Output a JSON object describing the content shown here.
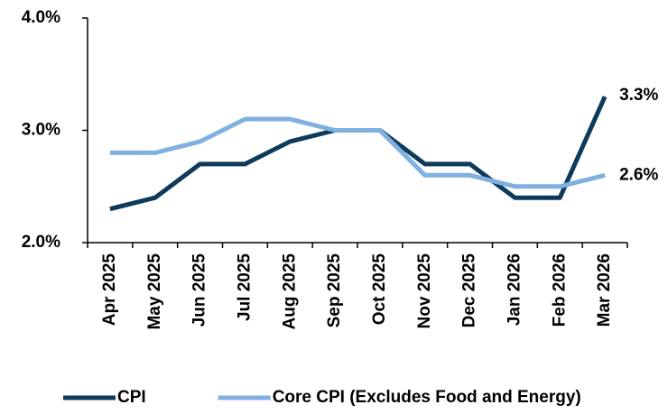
{
  "chart_data": {
    "type": "line",
    "categories": [
      "Apr 2025",
      "May 2025",
      "Jun 2025",
      "Jul 2025",
      "Aug 2025",
      "Sep 2025",
      "Oct 2025",
      "Nov 2025",
      "Dec 2025",
      "Jan 2026",
      "Feb 2026",
      "Mar 2026"
    ],
    "series": [
      {
        "name": "CPI",
        "color": "#0e3a5c",
        "values": [
          2.3,
          2.4,
          2.7,
          2.7,
          2.9,
          3.0,
          3.0,
          2.7,
          2.7,
          2.4,
          2.4,
          3.3
        ],
        "value_labels": [
          null,
          null,
          null,
          null,
          null,
          null,
          null,
          null,
          null,
          null,
          null,
          "3.3%"
        ]
      },
      {
        "name": "Core CPI (Excludes Food and Energy)",
        "color": "#7fb0e0",
        "values": [
          2.8,
          2.8,
          2.9,
          3.1,
          3.1,
          3.0,
          3.0,
          2.6,
          2.6,
          2.5,
          2.5,
          2.6
        ],
        "value_labels": [
          null,
          null,
          null,
          null,
          null,
          null,
          null,
          null,
          null,
          null,
          null,
          "2.6%"
        ]
      }
    ],
    "ylim": [
      2,
      4
    ],
    "yticks": [
      {
        "value": 2,
        "label": "2.0%"
      },
      {
        "value": 3,
        "label": "3.0%"
      },
      {
        "value": 4,
        "label": "4.0%"
      }
    ],
    "grid": false,
    "legend": "bottom"
  }
}
